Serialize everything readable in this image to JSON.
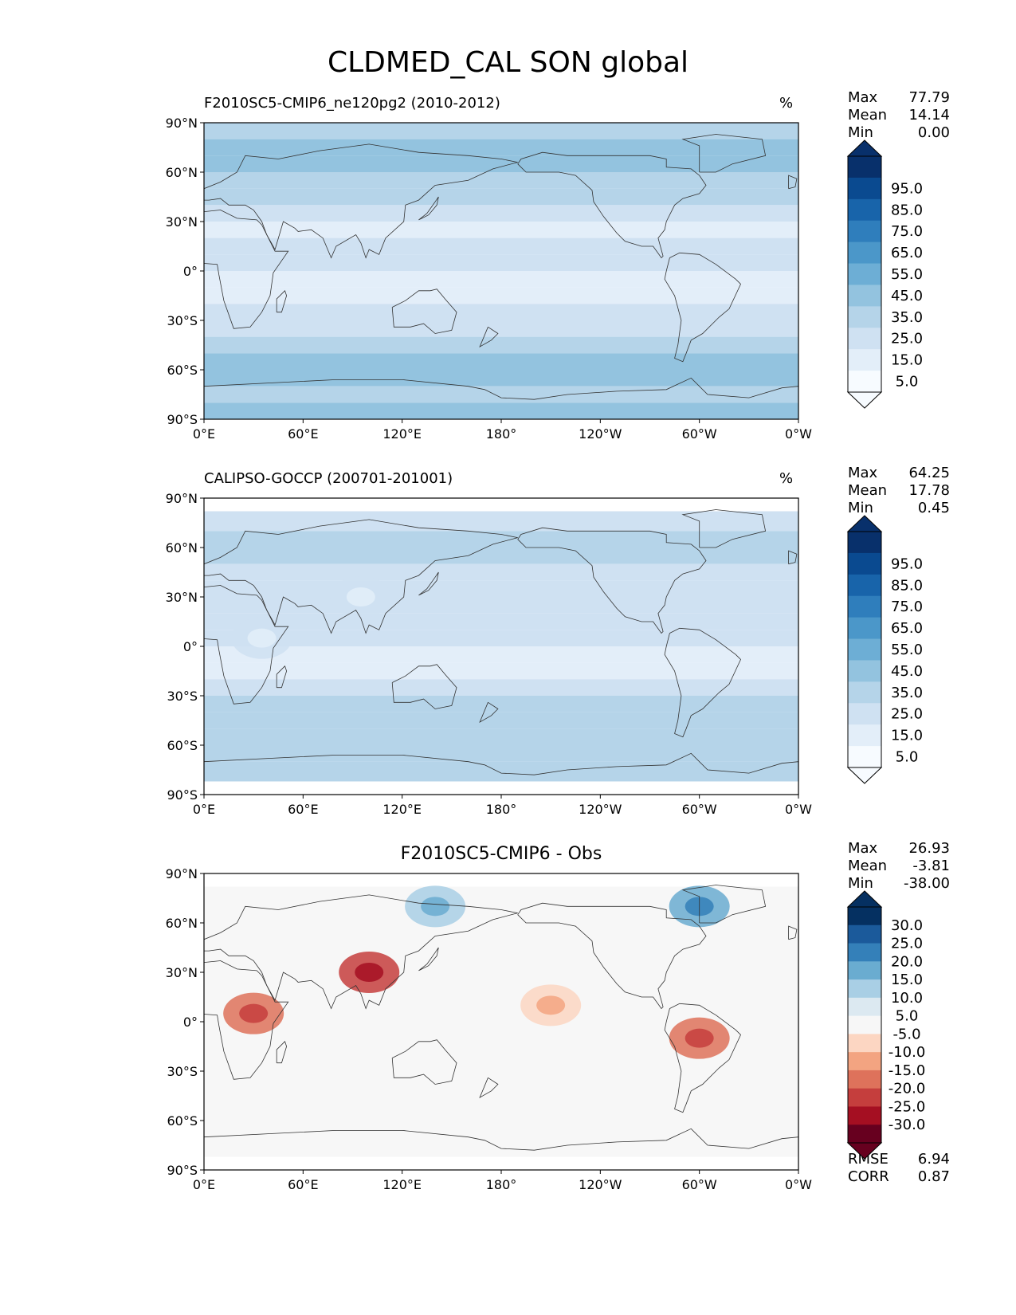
{
  "title": "CLDMED_CAL SON global",
  "colors": {
    "blues": [
      "#f7fbff",
      "#e3eef9",
      "#cfe1f2",
      "#b5d4e9",
      "#93c3df",
      "#6daed5",
      "#4b97c9",
      "#2f7ebc",
      "#1864aa",
      "#0a4a90",
      "#08306b"
    ],
    "rdbu": [
      "#67001f",
      "#a50f22",
      "#c53e3d",
      "#de725b",
      "#f3a481",
      "#fcd6c2",
      "#f7f7f7",
      "#dce9f1",
      "#a9cfe5",
      "#6aacd0",
      "#3480b9",
      "#1b5a9b",
      "#053061"
    ],
    "coastline": "#333333"
  },
  "chart_data": [
    {
      "type": "heatmap",
      "subtype": "geographic_map",
      "left_title": "F2010SC5-CMIP6_ne120pg2 (2010-2012)",
      "center_title": "",
      "units": "%",
      "stats": [
        [
          "Max",
          "77.79"
        ],
        [
          "Mean",
          "14.14"
        ],
        [
          "Min",
          "0.00"
        ]
      ],
      "colormap": "blues",
      "colorbar_ticks": [
        "95.0",
        "85.0",
        "75.0",
        "65.0",
        "55.0",
        "45.0",
        "35.0",
        "25.0",
        "15.0",
        "5.0"
      ],
      "xticks": [
        "0°E",
        "60°E",
        "120°E",
        "180°",
        "120°W",
        "60°W",
        "0°W"
      ],
      "yticks": [
        "90°N",
        "60°N",
        "30°N",
        "0°",
        "30°S",
        "60°S",
        "90°S"
      ],
      "xlim": [
        0,
        360
      ],
      "ylim": [
        -90,
        90
      ],
      "zonal_levels": [
        [
          90,
          3
        ],
        [
          80,
          3
        ],
        [
          70,
          4
        ],
        [
          60,
          3
        ],
        [
          50,
          3
        ],
        [
          40,
          2
        ],
        [
          30,
          1
        ],
        [
          20,
          1
        ],
        [
          10,
          2
        ],
        [
          0,
          1
        ],
        [
          -10,
          1
        ],
        [
          -20,
          1
        ],
        [
          -30,
          2
        ],
        [
          -40,
          2
        ],
        [
          -50,
          3
        ],
        [
          -60,
          4
        ],
        [
          -70,
          3
        ],
        [
          -80,
          3
        ],
        [
          -90,
          4
        ]
      ],
      "extra_rects": []
    },
    {
      "type": "heatmap",
      "subtype": "geographic_map",
      "left_title": "CALIPSO-GOCCP (200701-201001)",
      "center_title": "",
      "units": "%",
      "stats": [
        [
          "Max",
          "64.25"
        ],
        [
          "Mean",
          "17.78"
        ],
        [
          "Min",
          "0.45"
        ]
      ],
      "colormap": "blues",
      "colorbar_ticks": [
        "95.0",
        "85.0",
        "75.0",
        "65.0",
        "55.0",
        "45.0",
        "35.0",
        "25.0",
        "15.0",
        "5.0"
      ],
      "xticks": [
        "0°E",
        "60°E",
        "120°E",
        "180°",
        "120°W",
        "60°W",
        "0°W"
      ],
      "yticks": [
        "90°N",
        "60°N",
        "30°N",
        "0°",
        "30°S",
        "60°S",
        "90°S"
      ],
      "xlim": [
        0,
        360
      ],
      "ylim": [
        -90,
        90
      ],
      "zonal_levels": [
        [
          82,
          2
        ],
        [
          70,
          2
        ],
        [
          60,
          3
        ],
        [
          50,
          2
        ],
        [
          40,
          2
        ],
        [
          30,
          2
        ],
        [
          20,
          1
        ],
        [
          10,
          2
        ],
        [
          0,
          1
        ],
        [
          -10,
          1
        ],
        [
          -20,
          1
        ],
        [
          -30,
          2
        ],
        [
          -40,
          3
        ],
        [
          -50,
          3
        ],
        [
          -60,
          3
        ],
        [
          -70,
          3
        ],
        [
          -82,
          2
        ]
      ],
      "extra_rects": [
        [
          95,
          30,
          2
        ],
        [
          35,
          5,
          2
        ]
      ],
      "data_lat_range": [
        -82,
        82
      ]
    },
    {
      "type": "heatmap",
      "subtype": "geographic_map",
      "left_title": "",
      "center_title": "F2010SC5-CMIP6 - Obs",
      "units": "",
      "stats": [
        [
          "Max",
          "26.93"
        ],
        [
          "Mean",
          "-3.81"
        ],
        [
          "Min",
          "-38.00"
        ]
      ],
      "colormap": "rdbu",
      "colorbar_ticks": [
        "30.0",
        "25.0",
        "20.0",
        "15.0",
        "10.0",
        "5.0",
        "-5.0",
        "-10.0",
        "-15.0",
        "-20.0",
        "-25.0",
        "-30.0"
      ],
      "xticks": [
        "0°E",
        "60°E",
        "120°E",
        "180°",
        "120°W",
        "60°W",
        "0°W"
      ],
      "yticks": [
        "90°N",
        "60°N",
        "30°N",
        "0°",
        "30°S",
        "60°S",
        "90°S"
      ],
      "xlim": [
        0,
        360
      ],
      "ylim": [
        -90,
        90
      ],
      "zonal_levels": [
        [
          82,
          6
        ],
        [
          -82,
          6
        ]
      ],
      "extra_rects": [
        [
          30,
          5,
          3
        ],
        [
          100,
          30,
          2
        ],
        [
          300,
          -10,
          3
        ],
        [
          210,
          10,
          5
        ],
        [
          140,
          70,
          8
        ],
        [
          300,
          70,
          9
        ]
      ],
      "data_lat_range": [
        -82,
        82
      ],
      "error_metrics": [
        [
          "RMSE",
          "6.94"
        ],
        [
          "CORR",
          "0.87"
        ]
      ]
    }
  ]
}
